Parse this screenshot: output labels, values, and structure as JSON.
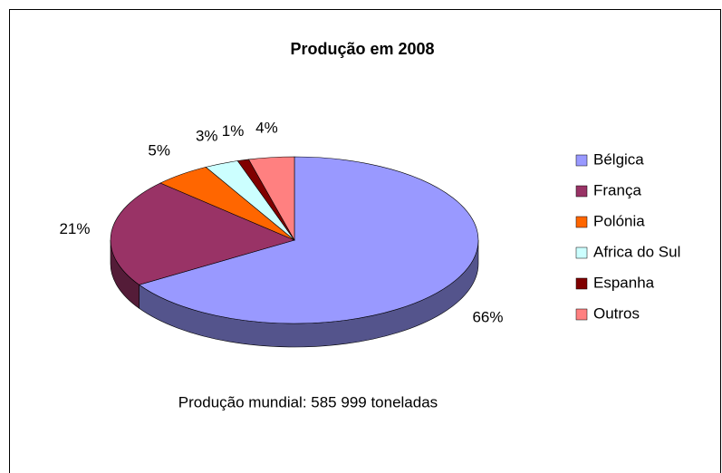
{
  "chart_data": {
    "type": "pie",
    "title": "Produção em 2008",
    "categories": [
      "Bélgica",
      "França",
      "Polónia",
      "Africa do Sul",
      "Espanha",
      "Outros"
    ],
    "values": [
      66,
      21,
      5,
      3,
      1,
      4
    ],
    "value_labels": [
      "66%",
      "21%",
      "5%",
      "3%",
      "1%",
      "4%"
    ],
    "colors": [
      "#9999ff",
      "#993366",
      "#ff6600",
      "#ccffff",
      "#800000",
      "#ff8080"
    ],
    "annotation": "Produção mundial: 585 999 toneladas",
    "legend": "right"
  }
}
